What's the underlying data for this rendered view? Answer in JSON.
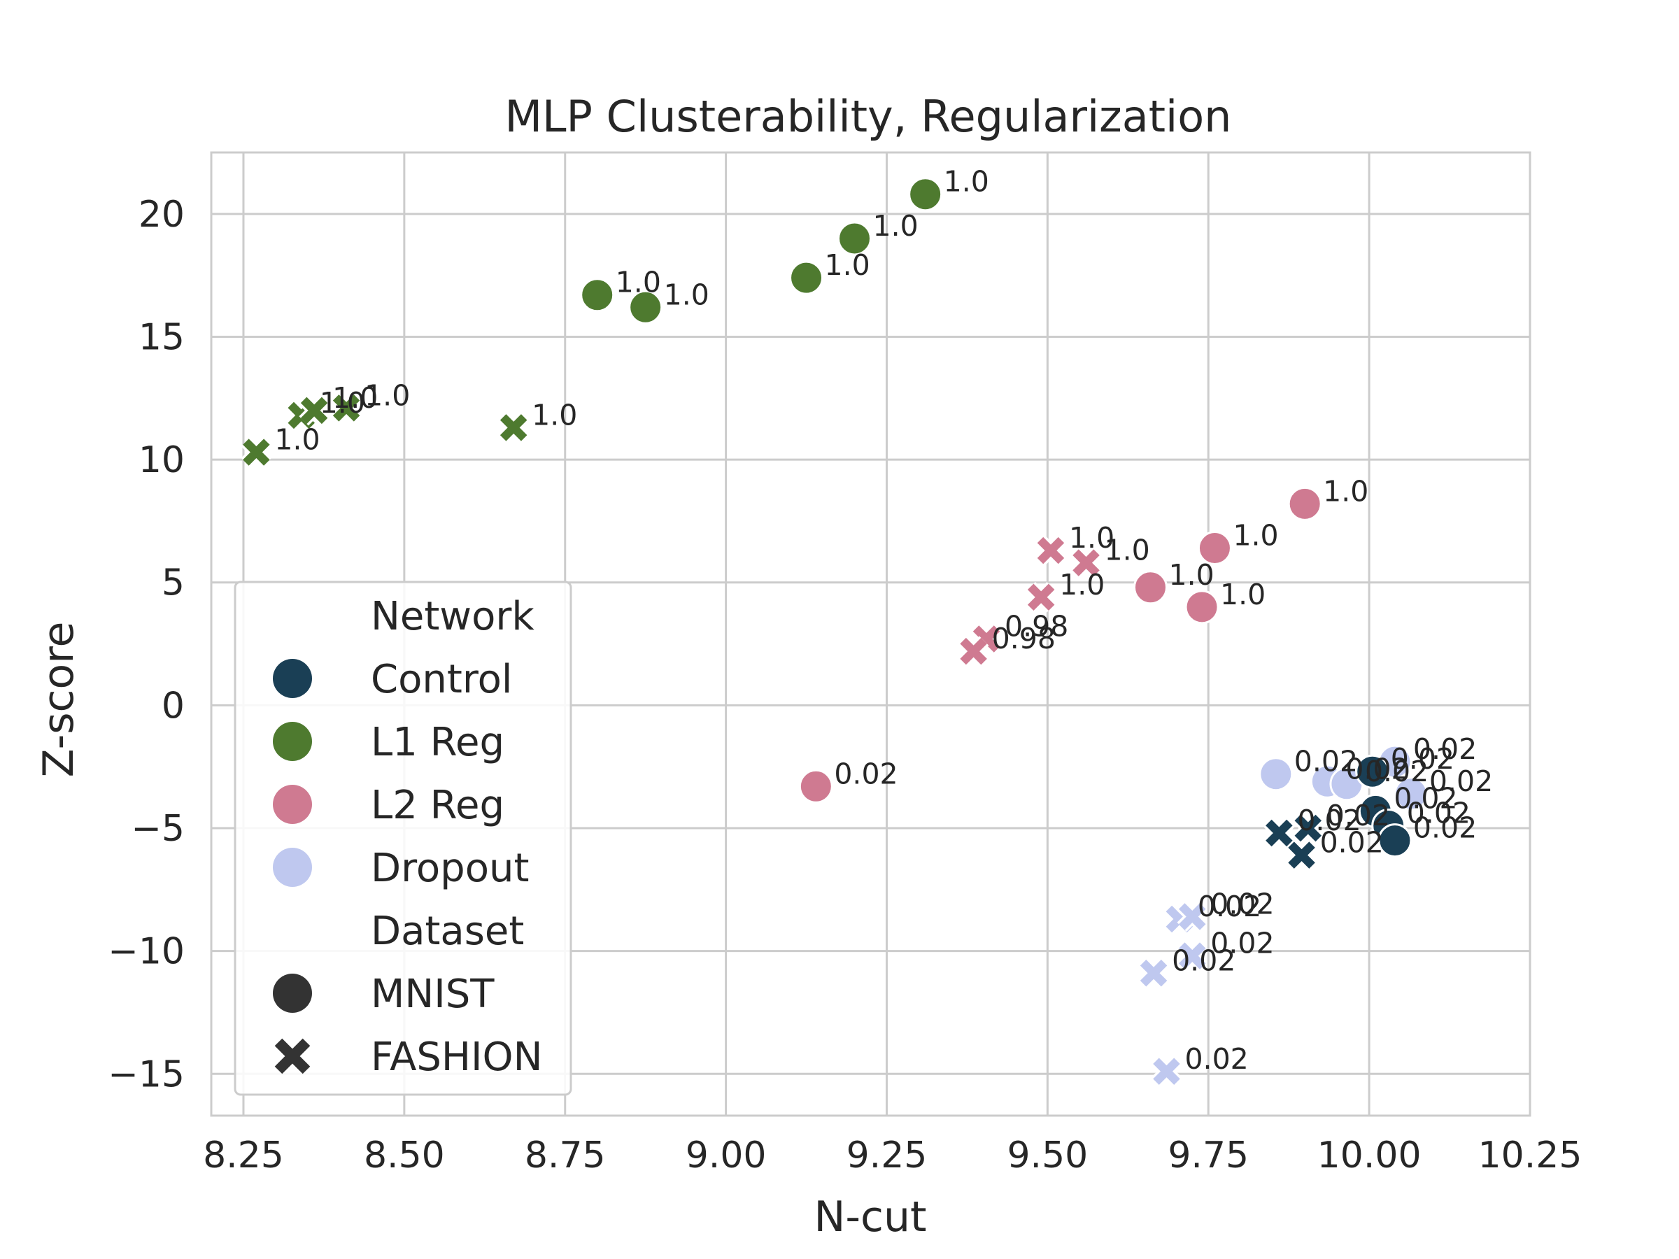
{
  "chart_data": {
    "type": "scatter",
    "title": "MLP Clusterability, Regularization",
    "xlabel": "N-cut",
    "ylabel": "Z-score",
    "xlim": [
      8.2,
      10.25
    ],
    "ylim": [
      -16.7,
      22.5
    ],
    "xticks": [
      8.25,
      8.5,
      8.75,
      9.0,
      9.25,
      9.5,
      9.75,
      10.0,
      10.25
    ],
    "xtick_labels": [
      "8.25",
      "8.50",
      "8.75",
      "9.00",
      "9.25",
      "9.50",
      "9.75",
      "10.00",
      "10.25"
    ],
    "yticks": [
      -15,
      -10,
      -5,
      0,
      5,
      10,
      15,
      20
    ],
    "ytick_labels": [
      "−15",
      "−10",
      "−5",
      "0",
      "5",
      "10",
      "15",
      "20"
    ],
    "grid": true,
    "legend": {
      "position": "lower-left",
      "hue_title": "Network",
      "style_title": "Dataset",
      "hue_entries": [
        {
          "name": "Control",
          "color": "#1a3f55"
        },
        {
          "name": "L1 Reg",
          "color": "#4e7a2f"
        },
        {
          "name": "L2 Reg",
          "color": "#cf7a91"
        },
        {
          "name": "Dropout",
          "color": "#bfc8ef"
        }
      ],
      "style_entries": [
        {
          "name": "MNIST",
          "marker": "circle"
        },
        {
          "name": "FASHION",
          "marker": "x"
        }
      ]
    },
    "series": [
      {
        "name": "L1 Reg",
        "color": "#4e7a2f",
        "points": [
          {
            "x": 9.31,
            "y": 20.8,
            "marker": "circle",
            "label": "1.0"
          },
          {
            "x": 9.2,
            "y": 19.0,
            "marker": "circle",
            "label": "1.0"
          },
          {
            "x": 9.125,
            "y": 17.4,
            "marker": "circle",
            "label": "1.0"
          },
          {
            "x": 8.8,
            "y": 16.7,
            "marker": "circle",
            "label": "1.0"
          },
          {
            "x": 8.875,
            "y": 16.2,
            "marker": "circle",
            "label": "1.0"
          },
          {
            "x": 8.27,
            "y": 10.3,
            "marker": "x",
            "label": "1.0"
          },
          {
            "x": 8.34,
            "y": 11.8,
            "marker": "x",
            "label": "1.0"
          },
          {
            "x": 8.36,
            "y": 12.0,
            "marker": "x",
            "label": "1.0"
          },
          {
            "x": 8.41,
            "y": 12.1,
            "marker": "x",
            "label": "1.0"
          },
          {
            "x": 8.67,
            "y": 11.3,
            "marker": "x",
            "label": "1.0"
          }
        ]
      },
      {
        "name": "L2 Reg",
        "color": "#cf7a91",
        "points": [
          {
            "x": 9.9,
            "y": 8.2,
            "marker": "circle",
            "label": "1.0"
          },
          {
            "x": 9.76,
            "y": 6.4,
            "marker": "circle",
            "label": "1.0"
          },
          {
            "x": 9.66,
            "y": 4.8,
            "marker": "circle",
            "label": "1.0"
          },
          {
            "x": 9.74,
            "y": 4.0,
            "marker": "circle",
            "label": "1.0"
          },
          {
            "x": 9.14,
            "y": -3.3,
            "marker": "circle",
            "label": "0.02"
          },
          {
            "x": 9.505,
            "y": 6.3,
            "marker": "x",
            "label": "1.0"
          },
          {
            "x": 9.56,
            "y": 5.8,
            "marker": "x",
            "label": "1.0"
          },
          {
            "x": 9.49,
            "y": 4.4,
            "marker": "x",
            "label": "1.0"
          },
          {
            "x": 9.405,
            "y": 2.7,
            "marker": "x",
            "label": "0.98"
          },
          {
            "x": 9.385,
            "y": 2.2,
            "marker": "x",
            "label": "0.98"
          }
        ]
      },
      {
        "name": "Dropout",
        "color": "#bfc8ef",
        "points": [
          {
            "x": 9.855,
            "y": -2.8,
            "marker": "circle",
            "label": "0.02"
          },
          {
            "x": 9.935,
            "y": -3.1,
            "marker": "circle",
            "label": "0.02"
          },
          {
            "x": 9.965,
            "y": -3.2,
            "marker": "circle",
            "label": "0.02"
          },
          {
            "x": 10.04,
            "y": -2.3,
            "marker": "circle",
            "label": "0.02"
          },
          {
            "x": 10.065,
            "y": -3.6,
            "marker": "circle",
            "label": "0.02"
          },
          {
            "x": 9.705,
            "y": -8.7,
            "marker": "x",
            "label": "0.02"
          },
          {
            "x": 9.725,
            "y": -8.6,
            "marker": "x",
            "label": "0.02"
          },
          {
            "x": 9.725,
            "y": -10.2,
            "marker": "x",
            "label": "0.02"
          },
          {
            "x": 9.665,
            "y": -10.9,
            "marker": "x",
            "label": "0.02"
          },
          {
            "x": 9.685,
            "y": -14.9,
            "marker": "x",
            "label": "0.02"
          }
        ]
      },
      {
        "name": "Control",
        "color": "#1a3f55",
        "points": [
          {
            "x": 10.005,
            "y": -2.7,
            "marker": "circle",
            "label": "0.02"
          },
          {
            "x": 10.01,
            "y": -4.3,
            "marker": "circle",
            "label": "0.02"
          },
          {
            "x": 10.03,
            "y": -4.9,
            "marker": "circle",
            "label": "0.02"
          },
          {
            "x": 10.04,
            "y": -5.5,
            "marker": "circle",
            "label": "0.02"
          },
          {
            "x": 9.86,
            "y": -5.2,
            "marker": "x",
            "label": "0.02"
          },
          {
            "x": 9.905,
            "y": -5.0,
            "marker": "x",
            "label": "0.02"
          },
          {
            "x": 9.895,
            "y": -6.1,
            "marker": "x",
            "label": "0.02"
          }
        ]
      }
    ]
  }
}
